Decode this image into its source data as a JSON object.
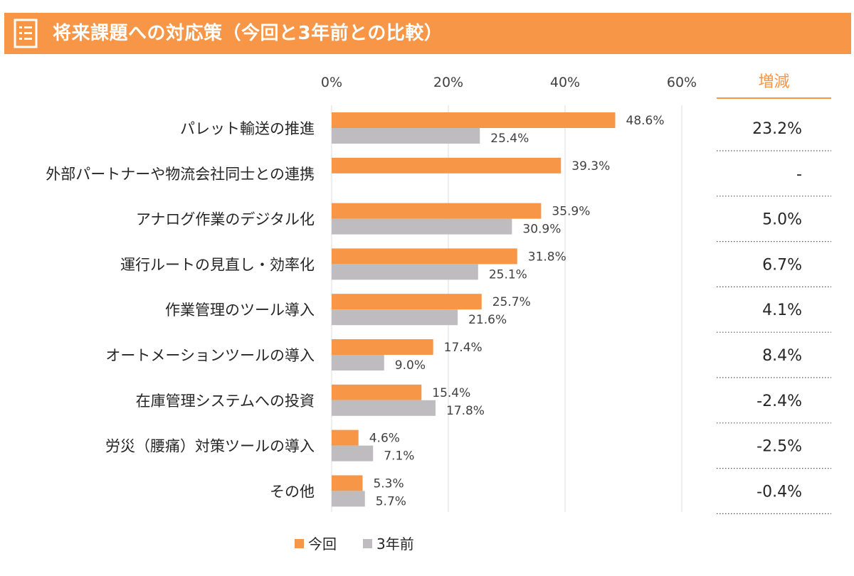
{
  "header": {
    "title": "将来課題への対応策（今回と3年前との比較）",
    "icon": "list-document-icon",
    "background_color": "#f79646"
  },
  "colors": {
    "current": "#f79646",
    "previous": "#bfbcbf",
    "accent_text": "#f79646",
    "grid": "#e2e2e2"
  },
  "chart_data": {
    "type": "bar",
    "orientation": "horizontal",
    "title": "将来課題への対応策（今回と3年前との比較）",
    "categories": [
      "パレット輸送の推進",
      "外部パートナーや物流会社同士との連携",
      "アナログ作業のデジタル化",
      "運行ルートの見直し・効率化",
      "作業管理のツール導入",
      "オートメーションツールの導入",
      "在庫管理システムへの投資",
      "労災（腰痛）対策ツールの導入",
      "その他"
    ],
    "series": [
      {
        "name": "今回",
        "values": [
          48.6,
          39.3,
          35.9,
          31.8,
          25.7,
          17.4,
          15.4,
          4.6,
          5.3
        ]
      },
      {
        "name": "3年前",
        "values": [
          25.4,
          null,
          30.9,
          25.1,
          21.6,
          9.0,
          17.8,
          7.1,
          5.7
        ]
      }
    ],
    "data_labels": {
      "今回": [
        "48.6%",
        "39.3%",
        "35.9%",
        "31.8%",
        "25.7%",
        "17.4%",
        "15.4%",
        "4.6%",
        "5.3%"
      ],
      "3年前": [
        "25.4%",
        "",
        "30.9%",
        "25.1%",
        "21.6%",
        "9.0%",
        "17.8%",
        "7.1%",
        "5.7%"
      ]
    },
    "x_ticks": [
      "0%",
      "20%",
      "40%",
      "60%"
    ],
    "xlim": [
      0,
      60
    ],
    "grid": true,
    "legend_position": "bottom",
    "change_column": {
      "header": "増減",
      "values": [
        "23.2%",
        "-",
        "5.0%",
        "6.7%",
        "4.1%",
        "8.4%",
        "-2.4%",
        "-2.5%",
        "-0.4%"
      ]
    }
  }
}
